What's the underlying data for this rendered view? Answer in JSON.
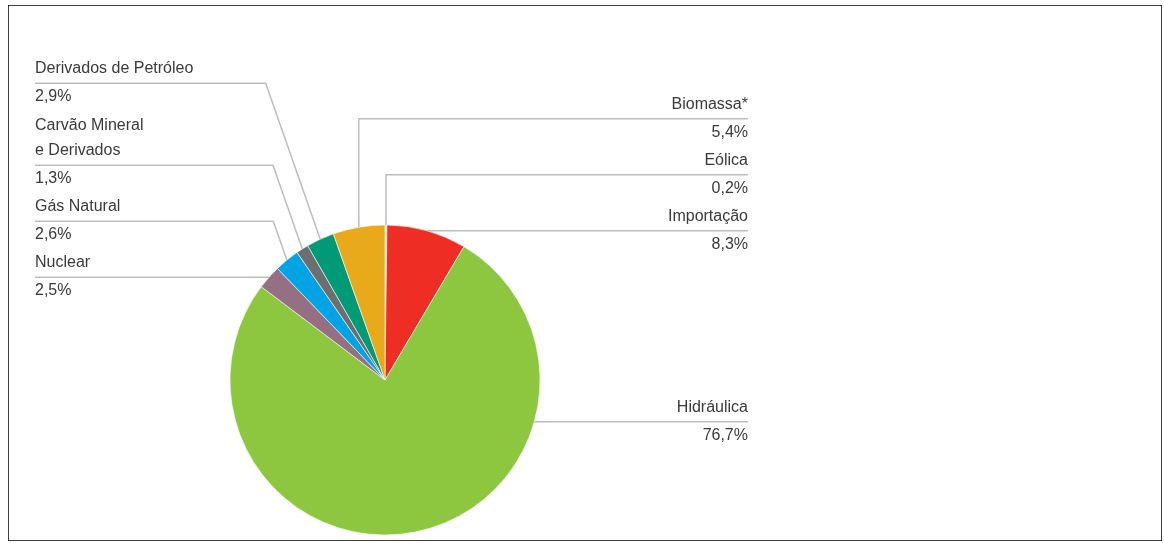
{
  "chart_data": {
    "type": "pie",
    "categories": [
      "Eólica",
      "Importação",
      "Hidráulica",
      "Nuclear",
      "Gás Natural",
      "Carvão Mineral e Derivados",
      "Derivados de Petróleo",
      "Biomassa*"
    ],
    "values": [
      0.2,
      8.3,
      76.7,
      2.5,
      2.6,
      1.3,
      2.9,
      5.4
    ],
    "value_labels": [
      "0,2%",
      "8,3%",
      "76,7%",
      "2,5%",
      "2,6%",
      "1,3%",
      "2,9%",
      "5,4%"
    ],
    "colors": [
      "#d8d8d8",
      "#ee2e24",
      "#8dc63f",
      "#957083",
      "#00a4e4",
      "#6d6e70",
      "#009a76",
      "#e8a91b"
    ]
  }
}
